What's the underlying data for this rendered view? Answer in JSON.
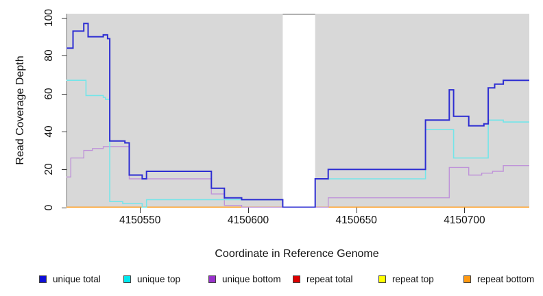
{
  "axes": {
    "x": {
      "label": "Coordinate in Reference Genome",
      "ticks": [
        4150550,
        4150600,
        4150650,
        4150700
      ],
      "range": [
        4150516,
        4150730
      ]
    },
    "y": {
      "label": "Read Coverage Depth",
      "ticks": [
        0,
        20,
        40,
        60,
        80,
        100
      ],
      "range": [
        0,
        102
      ]
    }
  },
  "colors": {
    "plot_background": "#d8d8d8",
    "gap_fill": "#ffffff",
    "gap_top_border": "#8a8a8a",
    "axis_line": "#666666",
    "tick": "#333333",
    "text": "#111111"
  },
  "chart_data": {
    "type": "line",
    "style": "step-after",
    "title": "",
    "xlabel": "Coordinate in Reference Genome",
    "ylabel": "Read Coverage Depth",
    "x_range": [
      4150516,
      4150730
    ],
    "y_range": [
      0,
      100
    ],
    "grid": false,
    "legend_position": "bottom",
    "gap_region": {
      "x_start": 4150616,
      "x_end": 4150631,
      "note": "white vertical band, no data shown except unique-total at 0"
    },
    "series": [
      {
        "name": "repeat total",
        "color": "#d40000",
        "width": 1.2,
        "layer": "below",
        "steps": [
          [
            4150516,
            0
          ]
        ]
      },
      {
        "name": "repeat top",
        "color": "#ffef00",
        "width": 1.2,
        "layer": "below",
        "steps": [
          [
            4150516,
            0
          ]
        ]
      },
      {
        "name": "repeat bottom",
        "color": "#ff9d20",
        "width": 1.8,
        "layer": "below",
        "steps": [
          [
            4150516,
            0
          ]
        ]
      },
      {
        "name": "unique bottom",
        "color": "#bf93d9",
        "width": 1.4,
        "layer": "below",
        "steps": [
          [
            4150516,
            16
          ],
          [
            4150518,
            26
          ],
          [
            4150524,
            30
          ],
          [
            4150528,
            31
          ],
          [
            4150533,
            32
          ],
          [
            4150545,
            15
          ],
          [
            4150583,
            7
          ],
          [
            4150589,
            1
          ],
          [
            4150597,
            0
          ],
          [
            4150637,
            5
          ],
          [
            4150693,
            21
          ],
          [
            4150702,
            17
          ],
          [
            4150708,
            18
          ],
          [
            4150713,
            19
          ],
          [
            4150718,
            22
          ]
        ]
      },
      {
        "name": "unique top",
        "color": "#74e5e9",
        "width": 1.6,
        "layer": "below",
        "steps": [
          [
            4150516,
            67
          ],
          [
            4150525,
            59
          ],
          [
            4150533,
            58
          ],
          [
            4150534,
            57
          ],
          [
            4150536,
            3
          ],
          [
            4150542,
            2
          ],
          [
            4150551,
            0
          ],
          [
            4150553,
            4
          ],
          [
            4150616,
            0
          ],
          [
            4150631,
            15
          ],
          [
            4150682,
            41
          ],
          [
            4150695,
            26
          ],
          [
            4150711,
            46
          ],
          [
            4150718,
            45
          ]
        ]
      },
      {
        "name": "unique total",
        "color": "#2d2dd2",
        "width": 2.0,
        "layer": "above",
        "steps": [
          [
            4150516,
            84
          ],
          [
            4150519,
            93
          ],
          [
            4150524,
            97
          ],
          [
            4150526,
            90
          ],
          [
            4150533,
            91
          ],
          [
            4150535,
            89
          ],
          [
            4150536,
            35
          ],
          [
            4150543,
            34
          ],
          [
            4150545,
            17
          ],
          [
            4150551,
            15
          ],
          [
            4150553,
            19
          ],
          [
            4150583,
            10
          ],
          [
            4150589,
            5
          ],
          [
            4150597,
            4
          ],
          [
            4150616,
            0
          ],
          [
            4150631,
            15
          ],
          [
            4150637,
            20
          ],
          [
            4150682,
            46
          ],
          [
            4150693,
            62
          ],
          [
            4150695,
            48
          ],
          [
            4150702,
            43
          ],
          [
            4150709,
            44
          ],
          [
            4150711,
            63
          ],
          [
            4150714,
            65
          ],
          [
            4150718,
            67
          ]
        ]
      }
    ]
  },
  "legend": {
    "items": [
      {
        "label": "unique total",
        "color": "#0f0fd6"
      },
      {
        "label": "unique top",
        "color": "#00e8ee"
      },
      {
        "label": "unique bottom",
        "color": "#9932cc"
      },
      {
        "label": "repeat total",
        "color": "#dd0000"
      },
      {
        "label": "repeat top",
        "color": "#ffff00"
      },
      {
        "label": "repeat bottom",
        "color": "#ff9912"
      }
    ]
  }
}
